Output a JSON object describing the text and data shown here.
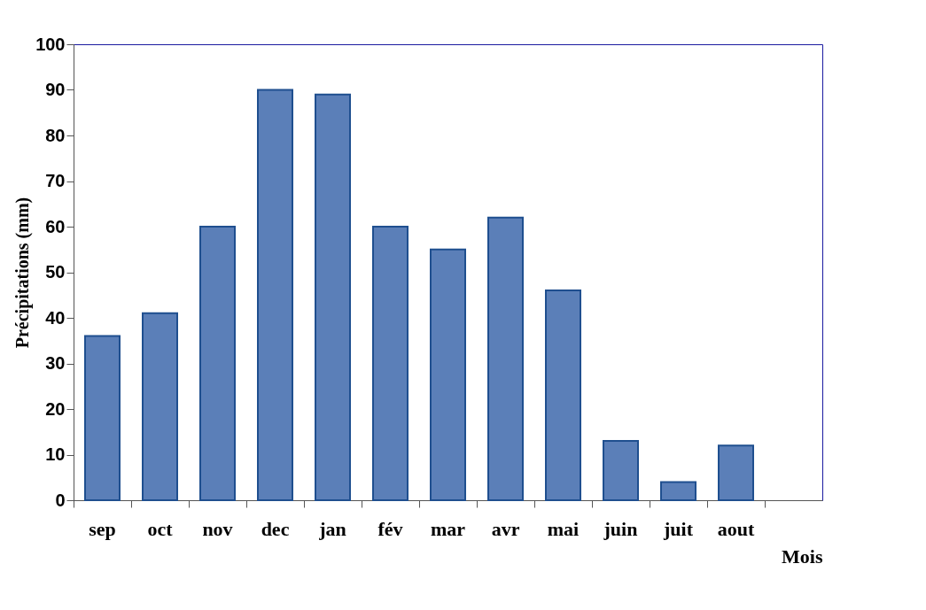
{
  "chart_data": {
    "type": "bar",
    "xlabel": "Mois",
    "ylabel": "Précipitations (mm)",
    "categories": [
      "sep",
      "oct",
      "nov",
      "dec",
      "jan",
      "fév",
      "mar",
      "avr",
      "mai",
      "juin",
      "juit",
      "aout",
      null
    ],
    "values": [
      36,
      41,
      60,
      90,
      89,
      60,
      55,
      62,
      46,
      13,
      4,
      12,
      null
    ],
    "color": "#5b7fb8",
    "ylim": [
      0,
      100
    ],
    "yticks": [
      0,
      10,
      20,
      30,
      40,
      50,
      60,
      70,
      80,
      90,
      100
    ],
    "grid": false
  }
}
